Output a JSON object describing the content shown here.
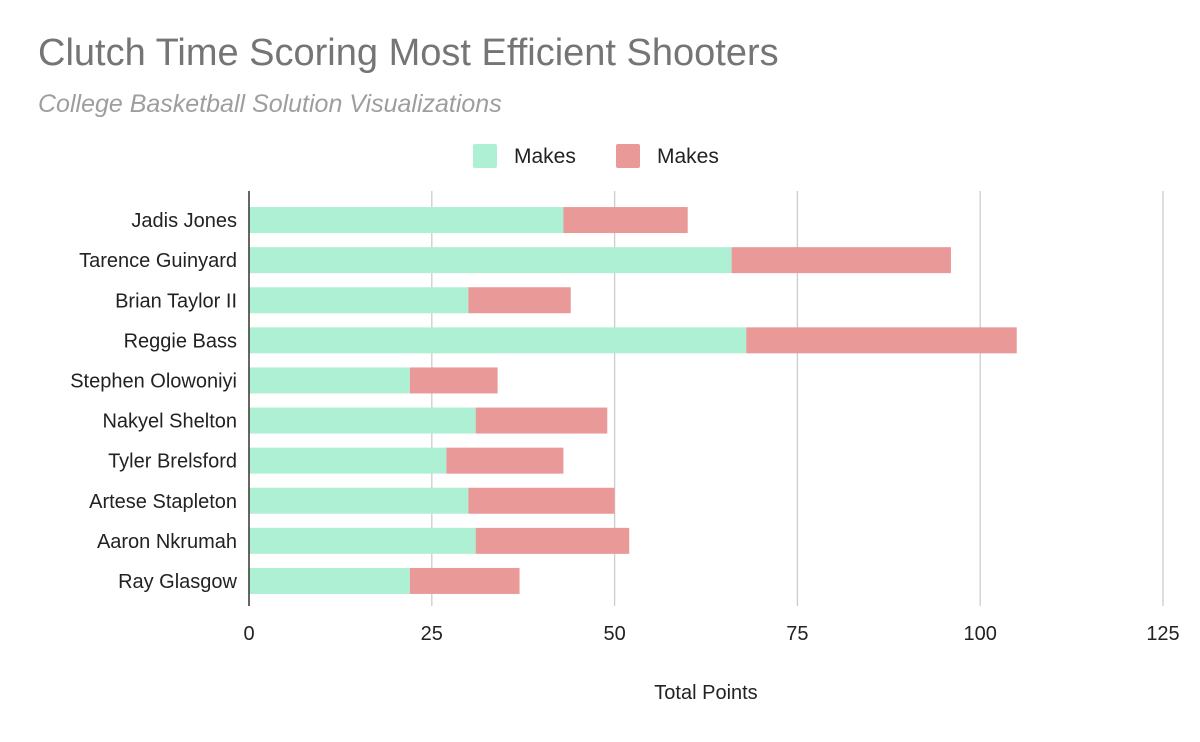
{
  "chart_data": {
    "type": "bar",
    "orientation": "horizontal",
    "stacked": true,
    "title": "Clutch Time Scoring Most Efficient Shooters",
    "subtitle": "College Basketball Solution Visualizations",
    "xlabel": "Total Points",
    "ylabel": "",
    "xlim": [
      0,
      125
    ],
    "x_ticks": [
      "0",
      "25",
      "50",
      "75",
      "100",
      "125"
    ],
    "grid": "vertical",
    "legend_position": "top",
    "categories": [
      "Jadis Jones",
      "Tarence Guinyard",
      "Brian Taylor II",
      "Reggie Bass",
      "Stephen Olowoniyi",
      "Nakyel Shelton",
      "Tyler Brelsford",
      "Artese Stapleton",
      "Aaron Nkrumah",
      "Ray Glasgow"
    ],
    "series": [
      {
        "name": "Makes",
        "color": "#aef0d4",
        "values": [
          43,
          66,
          30,
          68,
          22,
          31,
          27,
          30,
          31,
          22
        ]
      },
      {
        "name": "Makes",
        "color": "#ea9999",
        "values": [
          17,
          30,
          14,
          37,
          12,
          18,
          16,
          20,
          21,
          15
        ]
      }
    ]
  }
}
